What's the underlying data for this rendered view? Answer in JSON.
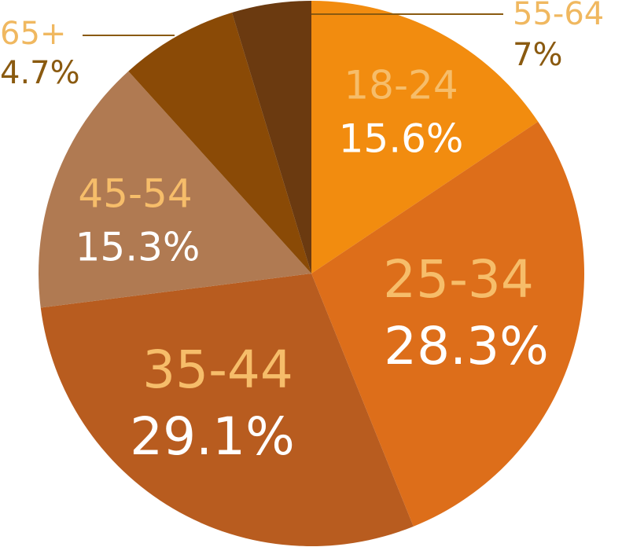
{
  "chart_data": {
    "type": "pie",
    "categories": [
      "18-24",
      "25-34",
      "35-44",
      "45-54",
      "55-64",
      "65+"
    ],
    "values": [
      15.6,
      28.3,
      29.1,
      15.3,
      7,
      4.7
    ],
    "value_labels": [
      "15.6%",
      "28.3%",
      "29.1%",
      "15.3%",
      "7%",
      "4.7%"
    ],
    "colors": [
      "#f28c0f",
      "#dd6e1a",
      "#b85c1f",
      "#b07a52",
      "#8a4a06",
      "#6b3a10"
    ]
  }
}
